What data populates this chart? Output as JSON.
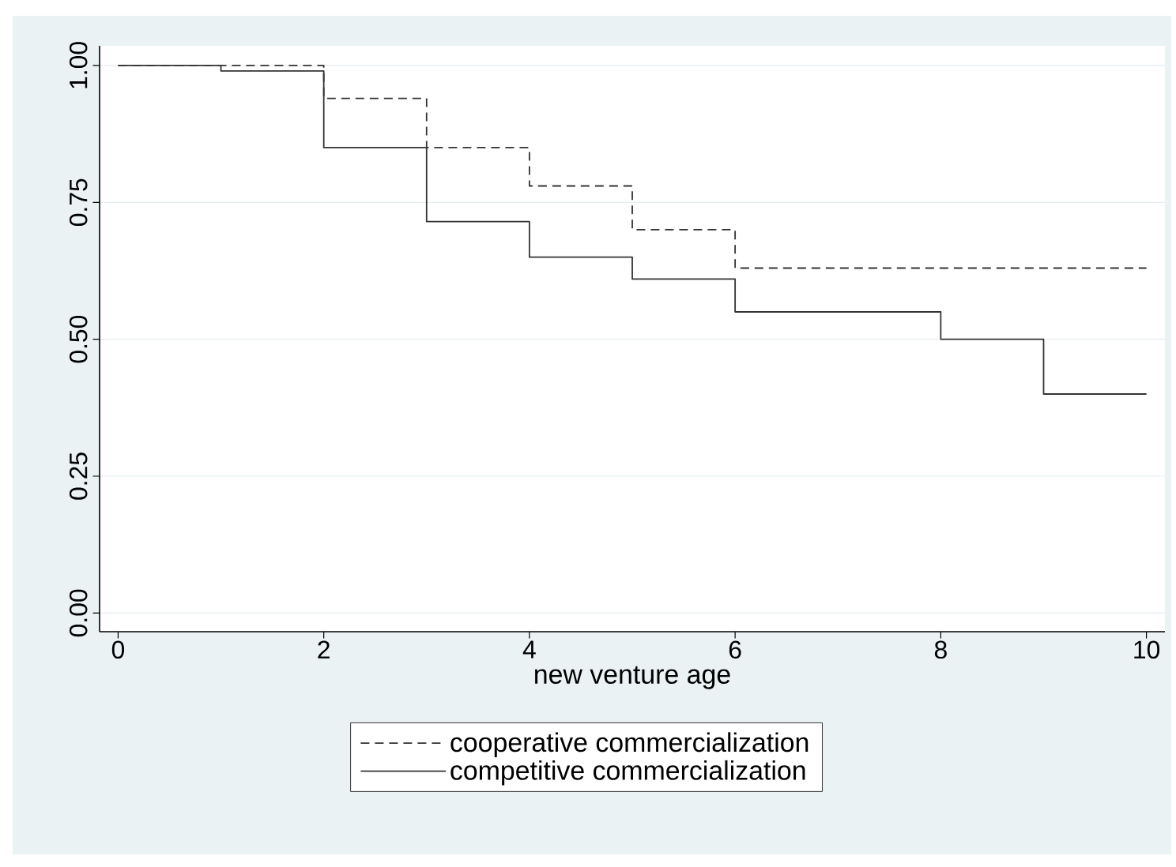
{
  "chart_data": {
    "type": "step",
    "xlabel": "new venture age",
    "xlim": [
      -0.18,
      10.18
    ],
    "ylim": [
      -0.034,
      1.036
    ],
    "xticks": [
      0,
      2,
      4,
      6,
      8,
      10
    ],
    "yticks": [
      {
        "value": 0,
        "label": "0.00"
      },
      {
        "value": 0.25,
        "label": "0.25"
      },
      {
        "value": 0.5,
        "label": "0.50"
      },
      {
        "value": 0.75,
        "label": "0.75"
      },
      {
        "value": 1,
        "label": "1.00"
      }
    ],
    "grid": "y",
    "legend": "bottom",
    "series": [
      {
        "name": "cooperative commercialization",
        "color": "#333333",
        "line_style": "dashed",
        "x": [
          0,
          2,
          3,
          4,
          5,
          6,
          10
        ],
        "values": [
          1,
          0.94,
          0.85,
          0.78,
          0.7,
          0.63,
          0.63
        ]
      },
      {
        "name": "competitive commercialization",
        "color": "#333333",
        "line_style": "solid",
        "x": [
          0,
          1,
          2,
          3,
          4,
          5,
          6,
          8,
          9,
          10
        ],
        "values": [
          1,
          0.99,
          0.85,
          0.715,
          0.65,
          0.61,
          0.55,
          0.5,
          0.4,
          0.4
        ]
      }
    ]
  }
}
